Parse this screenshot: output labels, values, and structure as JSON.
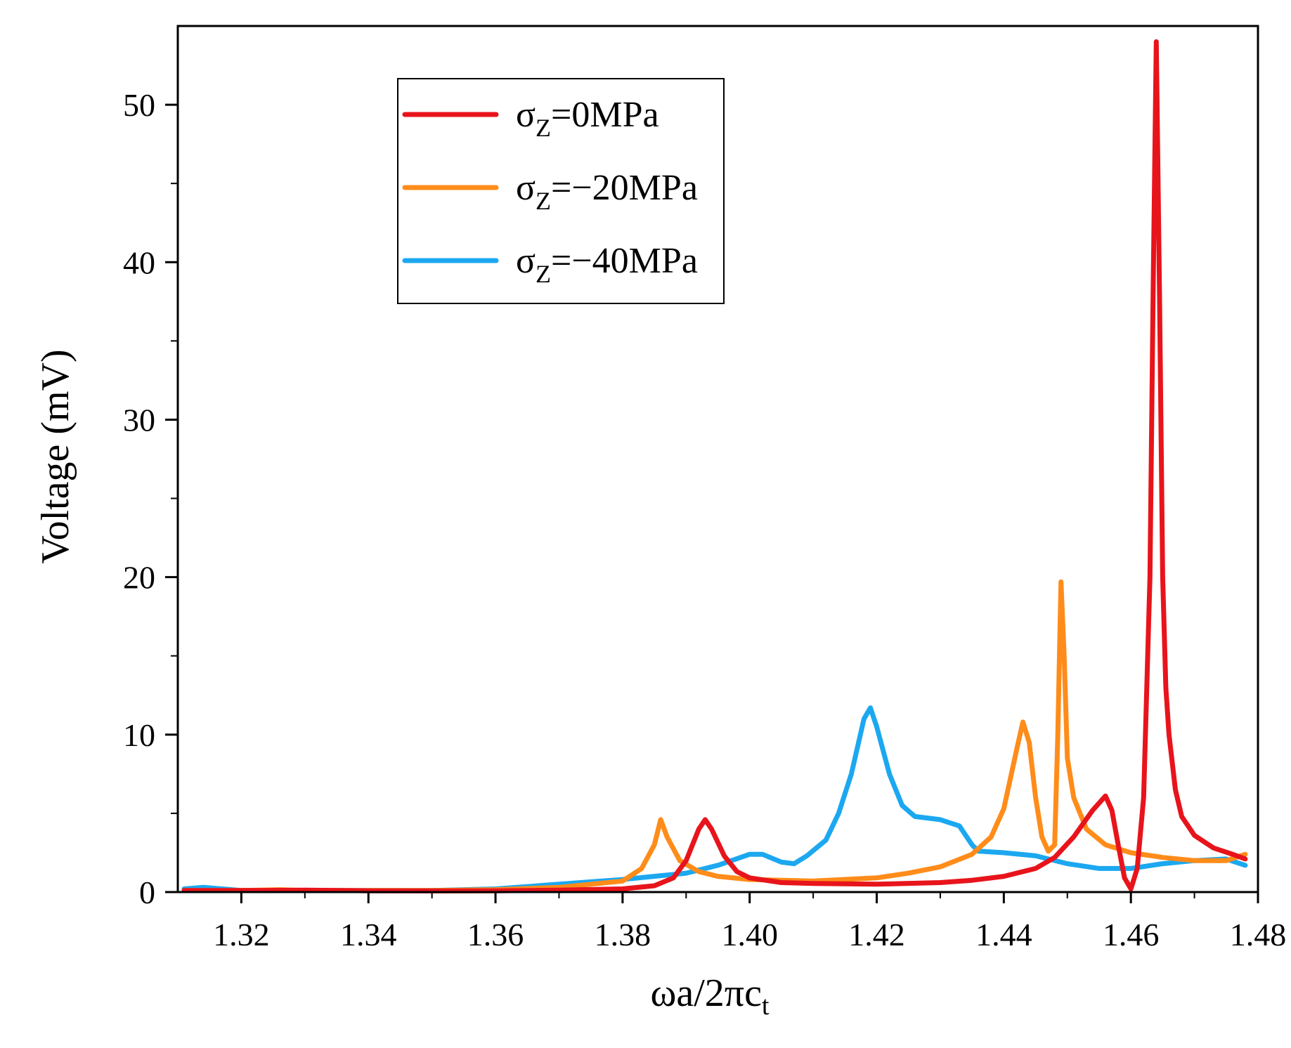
{
  "chart_data": {
    "type": "line",
    "title": "",
    "xlabel": "ωa/2πc",
    "xlabel_sub": "t",
    "ylabel": "Voltage (mV)",
    "xlim": [
      1.31,
      1.48
    ],
    "ylim": [
      0,
      55
    ],
    "xticks": [
      1.32,
      1.34,
      1.36,
      1.38,
      1.4,
      1.42,
      1.44,
      1.46,
      1.48
    ],
    "xtick_labels": [
      "1.32",
      "1.34",
      "1.36",
      "1.38",
      "1.40",
      "1.42",
      "1.44",
      "1.46",
      "1.48"
    ],
    "yticks": [
      0,
      10,
      20,
      30,
      40,
      50
    ],
    "ytick_labels": [
      "0",
      "10",
      "20",
      "30",
      "40",
      "50"
    ],
    "legend_position": "top-left",
    "series": [
      {
        "name": "σz=0MPa",
        "label_main": "σ",
        "label_sub": "Z",
        "label_rest": "=0MPa",
        "color": "#e8141b",
        "x": [
          1.311,
          1.32,
          1.33,
          1.34,
          1.35,
          1.36,
          1.37,
          1.38,
          1.385,
          1.388,
          1.39,
          1.392,
          1.393,
          1.394,
          1.396,
          1.398,
          1.4,
          1.405,
          1.41,
          1.42,
          1.43,
          1.435,
          1.44,
          1.445,
          1.448,
          1.451,
          1.454,
          1.456,
          1.457,
          1.458,
          1.459,
          1.46,
          1.461,
          1.462,
          1.463,
          1.4635,
          1.464,
          1.4645,
          1.465,
          1.4655,
          1.466,
          1.467,
          1.468,
          1.47,
          1.473,
          1.476,
          1.478
        ],
        "y": [
          0.1,
          0.1,
          0.12,
          0.08,
          0.07,
          0.08,
          0.12,
          0.2,
          0.4,
          0.9,
          2.0,
          4.0,
          4.6,
          4.0,
          2.3,
          1.3,
          0.9,
          0.6,
          0.55,
          0.5,
          0.6,
          0.75,
          1.0,
          1.5,
          2.2,
          3.5,
          5.2,
          6.1,
          5.2,
          3.0,
          0.9,
          0.2,
          1.5,
          6.0,
          20.0,
          38.0,
          54.0,
          38.0,
          20.0,
          13.0,
          10.0,
          6.5,
          4.8,
          3.6,
          2.8,
          2.4,
          2.1
        ]
      },
      {
        "name": "σz=−20MPa",
        "label_main": "σ",
        "label_sub": "Z",
        "label_rest": "=−20MPa",
        "color": "#ff8c1a",
        "x": [
          1.311,
          1.32,
          1.326,
          1.33,
          1.34,
          1.35,
          1.36,
          1.37,
          1.38,
          1.383,
          1.385,
          1.386,
          1.387,
          1.389,
          1.392,
          1.395,
          1.4,
          1.41,
          1.42,
          1.425,
          1.43,
          1.435,
          1.438,
          1.44,
          1.442,
          1.443,
          1.444,
          1.445,
          1.446,
          1.447,
          1.448,
          1.4485,
          1.449,
          1.4495,
          1.45,
          1.451,
          1.453,
          1.456,
          1.46,
          1.465,
          1.47,
          1.475,
          1.478
        ],
        "y": [
          0.1,
          0.1,
          0.15,
          0.1,
          0.1,
          0.1,
          0.15,
          0.3,
          0.7,
          1.5,
          3.0,
          4.6,
          3.5,
          2.0,
          1.3,
          1.0,
          0.8,
          0.7,
          0.9,
          1.2,
          1.6,
          2.4,
          3.5,
          5.3,
          9.0,
          10.8,
          9.5,
          6.0,
          3.5,
          2.6,
          3.0,
          10.0,
          19.7,
          15.0,
          8.5,
          6.0,
          4.0,
          3.0,
          2.5,
          2.2,
          2.0,
          2.0,
          2.4
        ]
      },
      {
        "name": "σz=−40MPa",
        "label_main": "σ",
        "label_sub": "Z",
        "label_rest": "=−40MPa",
        "color": "#1ca8f0",
        "x": [
          1.311,
          1.314,
          1.32,
          1.33,
          1.34,
          1.35,
          1.36,
          1.37,
          1.38,
          1.39,
          1.395,
          1.4,
          1.402,
          1.405,
          1.407,
          1.409,
          1.412,
          1.414,
          1.416,
          1.418,
          1.419,
          1.42,
          1.422,
          1.424,
          1.426,
          1.43,
          1.433,
          1.435,
          1.436,
          1.44,
          1.445,
          1.45,
          1.455,
          1.46,
          1.465,
          1.47,
          1.475,
          1.478
        ],
        "y": [
          0.2,
          0.3,
          0.1,
          0.1,
          0.1,
          0.1,
          0.2,
          0.5,
          0.8,
          1.2,
          1.7,
          2.4,
          2.4,
          1.9,
          1.8,
          2.3,
          3.3,
          5.0,
          7.5,
          11.0,
          11.7,
          10.5,
          7.5,
          5.5,
          4.8,
          4.6,
          4.2,
          3.0,
          2.6,
          2.5,
          2.3,
          1.8,
          1.5,
          1.5,
          1.8,
          2.0,
          2.1,
          1.7
        ]
      }
    ]
  }
}
